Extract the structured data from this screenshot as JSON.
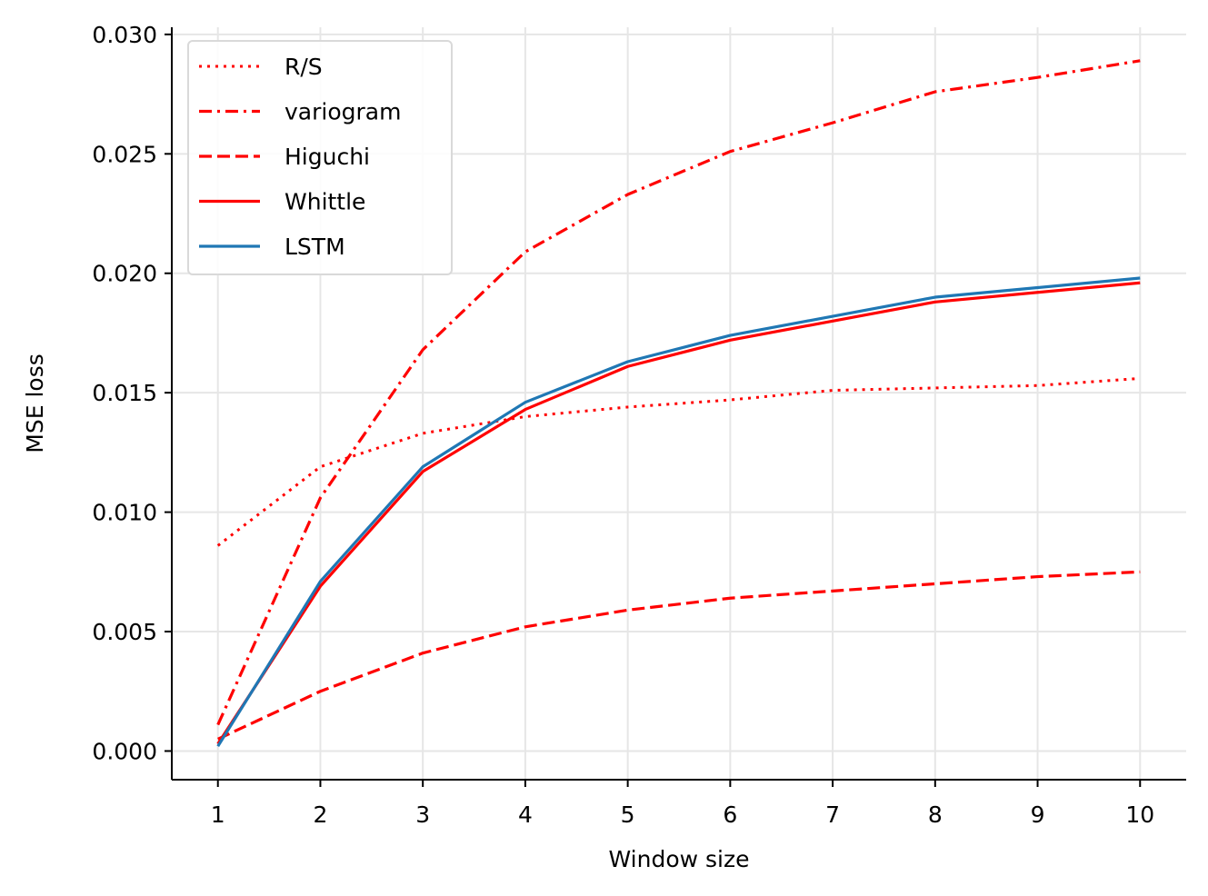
{
  "chart_data": {
    "type": "line",
    "title": "",
    "xlabel": "Window size",
    "ylabel": "MSE loss",
    "x": [
      1,
      2,
      3,
      4,
      5,
      6,
      7,
      8,
      9,
      10
    ],
    "xticks": [
      "1",
      "2",
      "3",
      "4",
      "5",
      "6",
      "7",
      "8",
      "9",
      "10"
    ],
    "yticks": [
      "0.000",
      "0.005",
      "0.010",
      "0.015",
      "0.020",
      "0.025",
      "0.030"
    ],
    "xlim": [
      0.55,
      10.45
    ],
    "ylim": [
      -0.0012,
      0.0303
    ],
    "grid": true,
    "legend_position": "top-left",
    "series": [
      {
        "name": "R/S",
        "color": "#ff0000",
        "style": "dotted",
        "values": [
          0.0086,
          0.0119,
          0.0133,
          0.014,
          0.0144,
          0.0147,
          0.0151,
          0.0152,
          0.0153,
          0.0156
        ]
      },
      {
        "name": "variogram",
        "color": "#ff0000",
        "style": "dashdot",
        "values": [
          0.0011,
          0.0106,
          0.0168,
          0.0209,
          0.0233,
          0.0251,
          0.0263,
          0.0276,
          0.0282,
          0.0289
        ]
      },
      {
        "name": "Higuchi",
        "color": "#ff0000",
        "style": "dashed",
        "values": [
          0.0005,
          0.0025,
          0.0041,
          0.0052,
          0.0059,
          0.0064,
          0.0067,
          0.007,
          0.0073,
          0.0075
        ]
      },
      {
        "name": "Whittle",
        "color": "#ff0000",
        "style": "solid",
        "values": [
          0.0003,
          0.0069,
          0.0117,
          0.0143,
          0.0161,
          0.0172,
          0.018,
          0.0188,
          0.0192,
          0.0196
        ]
      },
      {
        "name": "LSTM",
        "color": "#1f77b4",
        "style": "solid",
        "values": [
          0.0002,
          0.0071,
          0.0119,
          0.0146,
          0.0163,
          0.0174,
          0.0182,
          0.019,
          0.0194,
          0.0198
        ]
      }
    ]
  }
}
